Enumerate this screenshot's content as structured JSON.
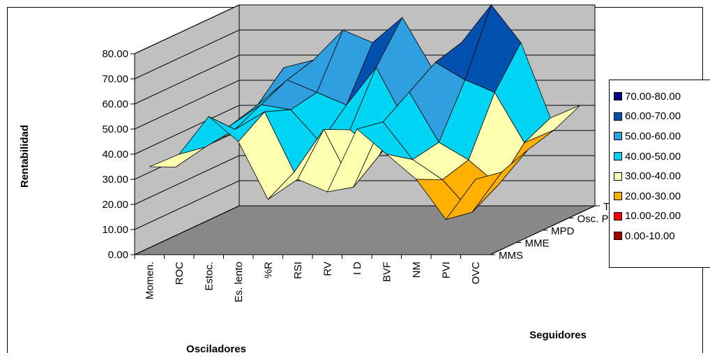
{
  "chart_data": {
    "type": "surface",
    "title": "",
    "ylabel": "Rentabilidad",
    "xlabel": "Osciladores",
    "zlabel": "Seguidores",
    "ylim": [
      0,
      80
    ],
    "y_ticks": [
      "0.00",
      "10.00",
      "20.00",
      "30.00",
      "40.00",
      "50.00",
      "60.00",
      "70.00",
      "80.00"
    ],
    "x_categories": [
      "Momen.",
      "ROC",
      "Estoc.",
      "Es. lento",
      "%R",
      "RSI",
      "RV",
      "I D",
      "BVF",
      "NM",
      "PVI",
      "OVC"
    ],
    "z_categories": [
      "MMS",
      "MME",
      "MPD",
      "Osc. P",
      "TRIX"
    ],
    "legend_placement": "right",
    "bands": [
      {
        "label": "70.00-80.00",
        "color": "#000080"
      },
      {
        "label": "60.00-70.00",
        "color": "#0050b0"
      },
      {
        "label": "50.00-60.00",
        "color": "#2f9fe0"
      },
      {
        "label": "40.00-50.00",
        "color": "#00d4f4"
      },
      {
        "label": "30.00-40.00",
        "color": "#ffffb0"
      },
      {
        "label": "20.00-30.00",
        "color": "#ffb000"
      },
      {
        "label": "10.00-20.00",
        "color": "#ff0000"
      },
      {
        "label": "0.00-10.00",
        "color": "#a00000"
      }
    ],
    "series": [
      {
        "name": "MMS",
        "values": [
          35,
          40,
          55,
          45,
          22,
          30,
          25,
          50,
          40,
          30,
          14,
          30
        ]
      },
      {
        "name": "MME",
        "values": [
          30,
          38,
          45,
          52,
          28,
          45,
          22,
          48,
          33,
          25,
          12,
          28
        ]
      },
      {
        "name": "MPD",
        "values": [
          34,
          42,
          50,
          48,
          35,
          40,
          30,
          55,
          35,
          28,
          18,
          32
        ]
      },
      {
        "name": "Osc. P",
        "values": [
          33,
          45,
          55,
          50,
          45,
          60,
          38,
          62,
          55,
          50,
          30,
          35
        ]
      },
      {
        "name": "TRIX",
        "values": [
          28,
          55,
          58,
          70,
          65,
          75,
          55,
          65,
          80,
          65,
          35,
          40
        ]
      }
    ]
  }
}
